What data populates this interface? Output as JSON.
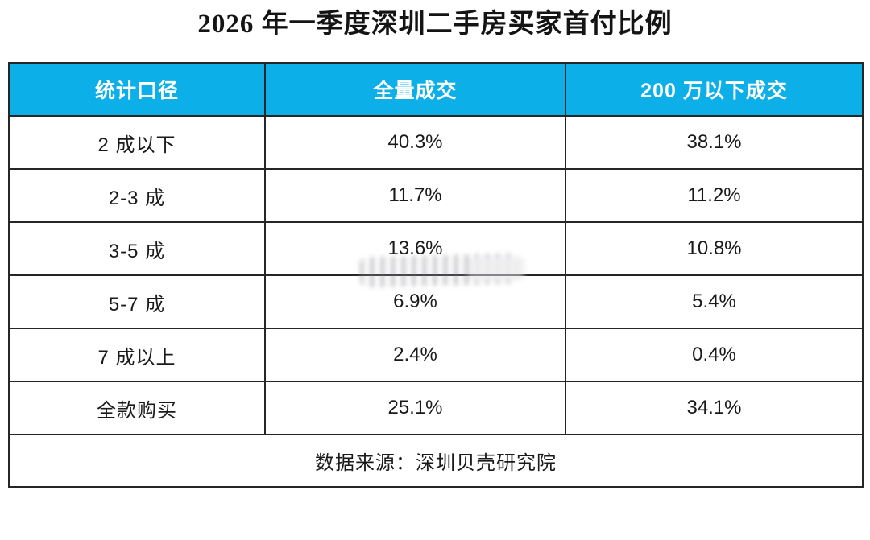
{
  "page": {
    "background": "#FFFFFF"
  },
  "chart_data": {
    "type": "table",
    "title": "2026 年一季度深圳二手房买家首付比例",
    "columns": [
      "统计口径",
      "全量成交",
      "200 万以下成交"
    ],
    "row_labels": [
      "2 成以下",
      "2-3 成",
      "3-5 成",
      "5-7 成",
      "7 成以上",
      "全款购买"
    ],
    "series": [
      {
        "name": "全量成交",
        "values": [
          40.3,
          11.7,
          13.6,
          6.9,
          2.4,
          25.1
        ]
      },
      {
        "name": "200 万以下成交",
        "values": [
          38.1,
          11.2,
          10.8,
          5.4,
          0.4,
          34.1
        ]
      }
    ],
    "unit": "%",
    "rows": [
      [
        "2 成以下",
        "40.3%",
        "38.1%"
      ],
      [
        "2-3 成",
        "11.7%",
        "11.2%"
      ],
      [
        "3-5 成",
        "13.6%",
        "10.8%"
      ],
      [
        "5-7 成",
        "6.9%",
        "5.4%"
      ],
      [
        "7 成以上",
        "2.4%",
        "0.4%"
      ],
      [
        "全款购买",
        "25.1%",
        "34.1%"
      ]
    ],
    "footer": "数据来源：深圳贝壳研究院"
  },
  "colors": {
    "header_bg": "#0CAFE8",
    "header_text": "#FFFFFF",
    "border": "#262626",
    "body_text": "#1A1A1A",
    "watermark_gray": "#8C8C94"
  },
  "watermark": {
    "present": true,
    "description": "blurred gray smudge over the 13.6% cell"
  }
}
